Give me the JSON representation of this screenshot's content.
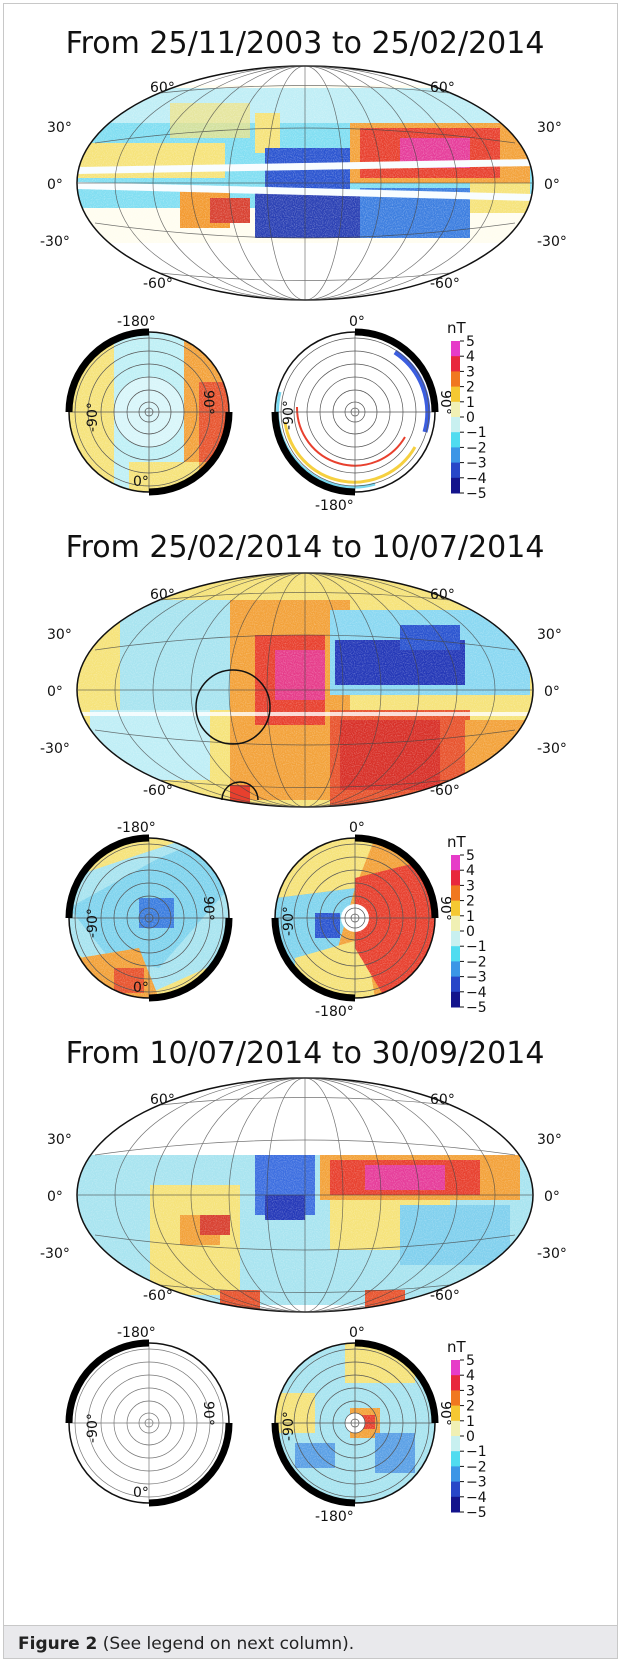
{
  "panels": [
    {
      "title": "From 25/11/2003 to 25/02/2014",
      "lat_labels": [
        "60°",
        "30°",
        "0°",
        "-30°",
        "-60°"
      ],
      "left_polar": {
        "top": "-180°",
        "left": "-90°",
        "right": "90°",
        "bottom": "0°"
      },
      "right_polar": {
        "top": "0°",
        "left": "-90°",
        "right": "90°",
        "bottom": "-180°"
      }
    },
    {
      "title": "From 25/02/2014 to 10/07/2014",
      "lat_labels": [
        "60°",
        "30°",
        "0°",
        "-30°",
        "-60°"
      ],
      "left_polar": {
        "top": "-180°",
        "left": "-90°",
        "right": "90°",
        "bottom": "0°"
      },
      "right_polar": {
        "top": "0°",
        "left": "-90°",
        "right": "90°",
        "bottom": "-180°"
      }
    },
    {
      "title": "From 10/07/2014 to 30/09/2014",
      "lat_labels": [
        "60°",
        "30°",
        "0°",
        "-30°",
        "-60°"
      ],
      "left_polar": {
        "top": "-180°",
        "left": "-90°",
        "right": "90°",
        "bottom": "0°"
      },
      "right_polar": {
        "top": "0°",
        "left": "-90°",
        "right": "90°",
        "bottom": "-180°"
      }
    }
  ],
  "colorbar": {
    "unit": "nT",
    "ticks": [
      "5",
      "4",
      "3",
      "2",
      "1",
      "0",
      "−1",
      "−2",
      "−3",
      "−4",
      "−5"
    ],
    "colors": [
      "#e63cc8",
      "#e8283c",
      "#f07820",
      "#f5c832",
      "#f0f0b4",
      "#c8f0f0",
      "#50dcf0",
      "#3c96e6",
      "#2846c8",
      "#14148c"
    ]
  },
  "caption": {
    "label": "Figure 2",
    "text": "(See legend on next column)."
  }
}
